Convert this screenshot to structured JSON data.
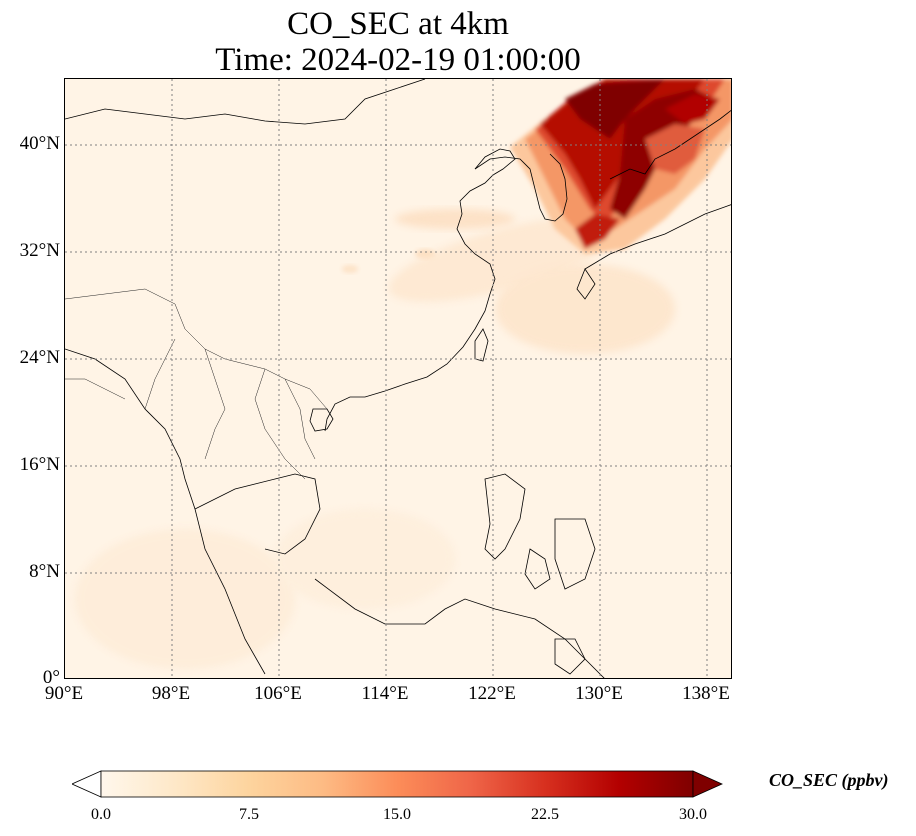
{
  "title": {
    "line1": "CO_SEC at 4km",
    "line2": "Time: 2024-02-19 01:00:00"
  },
  "map": {
    "projection": "PlateCarree",
    "lon_range": [
      90,
      140
    ],
    "lat_range": [
      0,
      45
    ],
    "gridlines": "dotted gray",
    "x_ticks": [
      "90°E",
      "98°E",
      "106°E",
      "114°E",
      "122°E",
      "130°E",
      "138°E"
    ],
    "x_tick_lons": [
      90,
      98,
      106,
      114,
      122,
      130,
      138
    ],
    "y_ticks": [
      "0°",
      "8°N",
      "16°N",
      "24°N",
      "32°N",
      "40°N"
    ],
    "y_tick_lats": [
      0,
      8,
      16,
      24,
      32,
      40
    ],
    "background_color": "#fff5e9",
    "coastline_color": "#000000"
  },
  "colorbar": {
    "label": "CO_SEC (ppbv)",
    "min": 0.0,
    "max": 30.0,
    "ticks": [
      "0.0",
      "7.5",
      "15.0",
      "22.5",
      "30.0"
    ],
    "tick_values": [
      0,
      7.5,
      15,
      22.5,
      30
    ],
    "colormap": "OrRd",
    "colors": [
      "#fff7ec",
      "#fee8c8",
      "#fdd49e",
      "#fdbb84",
      "#fc8d59",
      "#ef6548",
      "#d7301f",
      "#b30000",
      "#7f0000"
    ],
    "extend": "both"
  }
}
